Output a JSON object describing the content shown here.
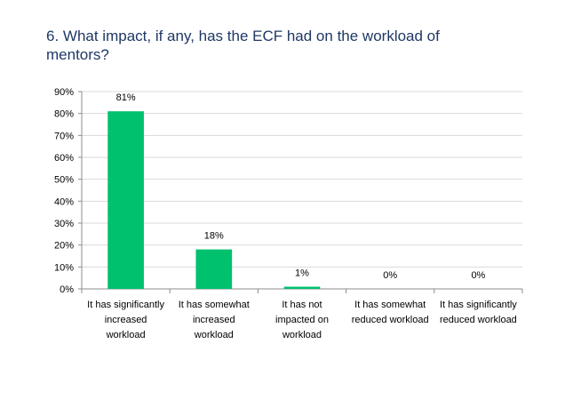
{
  "title": "6. What impact, if any, has the ECF had on the workload of mentors?",
  "chart_data": {
    "type": "bar",
    "categories": [
      [
        "It has significantly",
        "increased",
        "workload"
      ],
      [
        "It has somewhat",
        "increased",
        "workload"
      ],
      [
        "It has not",
        "impacted on",
        "workload"
      ],
      [
        "It has somewhat",
        "reduced workload"
      ],
      [
        "It has significantly",
        "reduced workload"
      ]
    ],
    "values": [
      81,
      18,
      1,
      0,
      0
    ],
    "data_labels": [
      "81%",
      "18%",
      "1%",
      "0%",
      "0%"
    ],
    "yticks": [
      "0%",
      "10%",
      "20%",
      "30%",
      "40%",
      "50%",
      "60%",
      "70%",
      "80%",
      "90%"
    ],
    "ylim": [
      0,
      90
    ],
    "grid": true,
    "bar_color": "#00c16e",
    "grid_color": "#d9d9d9"
  }
}
